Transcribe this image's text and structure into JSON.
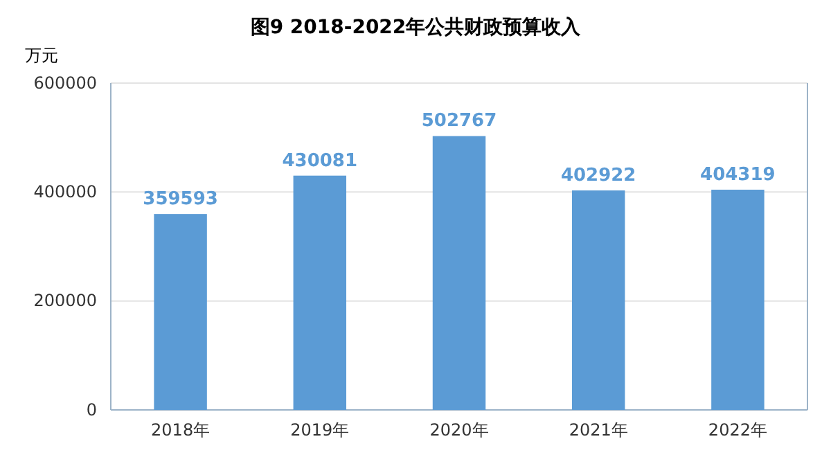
{
  "chart_data": {
    "type": "bar",
    "title": "图9 2018-2022年公共财政预算收入",
    "ylabel": "万元",
    "categories": [
      "2018年",
      "2019年",
      "2020年",
      "2021年",
      "2022年"
    ],
    "values": [
      359593,
      430081,
      502767,
      402922,
      404319
    ],
    "color": "#5b9bd5",
    "ylim": [
      0,
      600000
    ],
    "yticks": [
      0,
      200000,
      400000,
      600000
    ],
    "grid": "y",
    "data_labels": true
  }
}
